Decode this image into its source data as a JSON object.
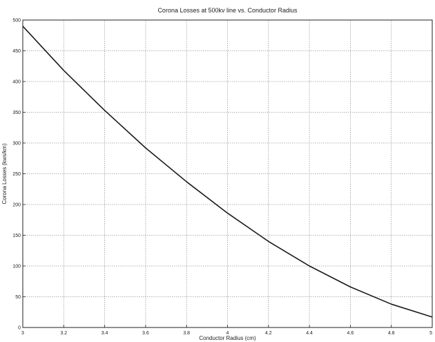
{
  "chart_data": {
    "type": "line",
    "title": "Corona Losses at 500kv line vs. Conductor Radius",
    "xlabel": "Conductor Radius (cm)",
    "ylabel": "Corona Losses (kws/km)",
    "xlim": [
      3,
      5
    ],
    "ylim": [
      0,
      500
    ],
    "xticks": [
      "3",
      "3.2",
      "3.4",
      "3.6",
      "3.8",
      "4",
      "4.2",
      "4.4",
      "4.6",
      "4.8",
      "5"
    ],
    "yticks": [
      "0",
      "50",
      "100",
      "150",
      "200",
      "250",
      "300",
      "350",
      "400",
      "450",
      "500"
    ],
    "grid": true,
    "series": [
      {
        "x": [
          3.0,
          3.2,
          3.4,
          3.6,
          3.8,
          4.0,
          4.2,
          4.4,
          4.6,
          4.8,
          5.0
        ],
        "values": [
          490,
          418,
          353,
          292,
          237,
          186,
          140,
          100,
          66,
          38,
          17
        ]
      }
    ],
    "colors": {
      "line": "#1a1a1a",
      "grid": "#9a9a9a",
      "axes": "#222222"
    }
  }
}
